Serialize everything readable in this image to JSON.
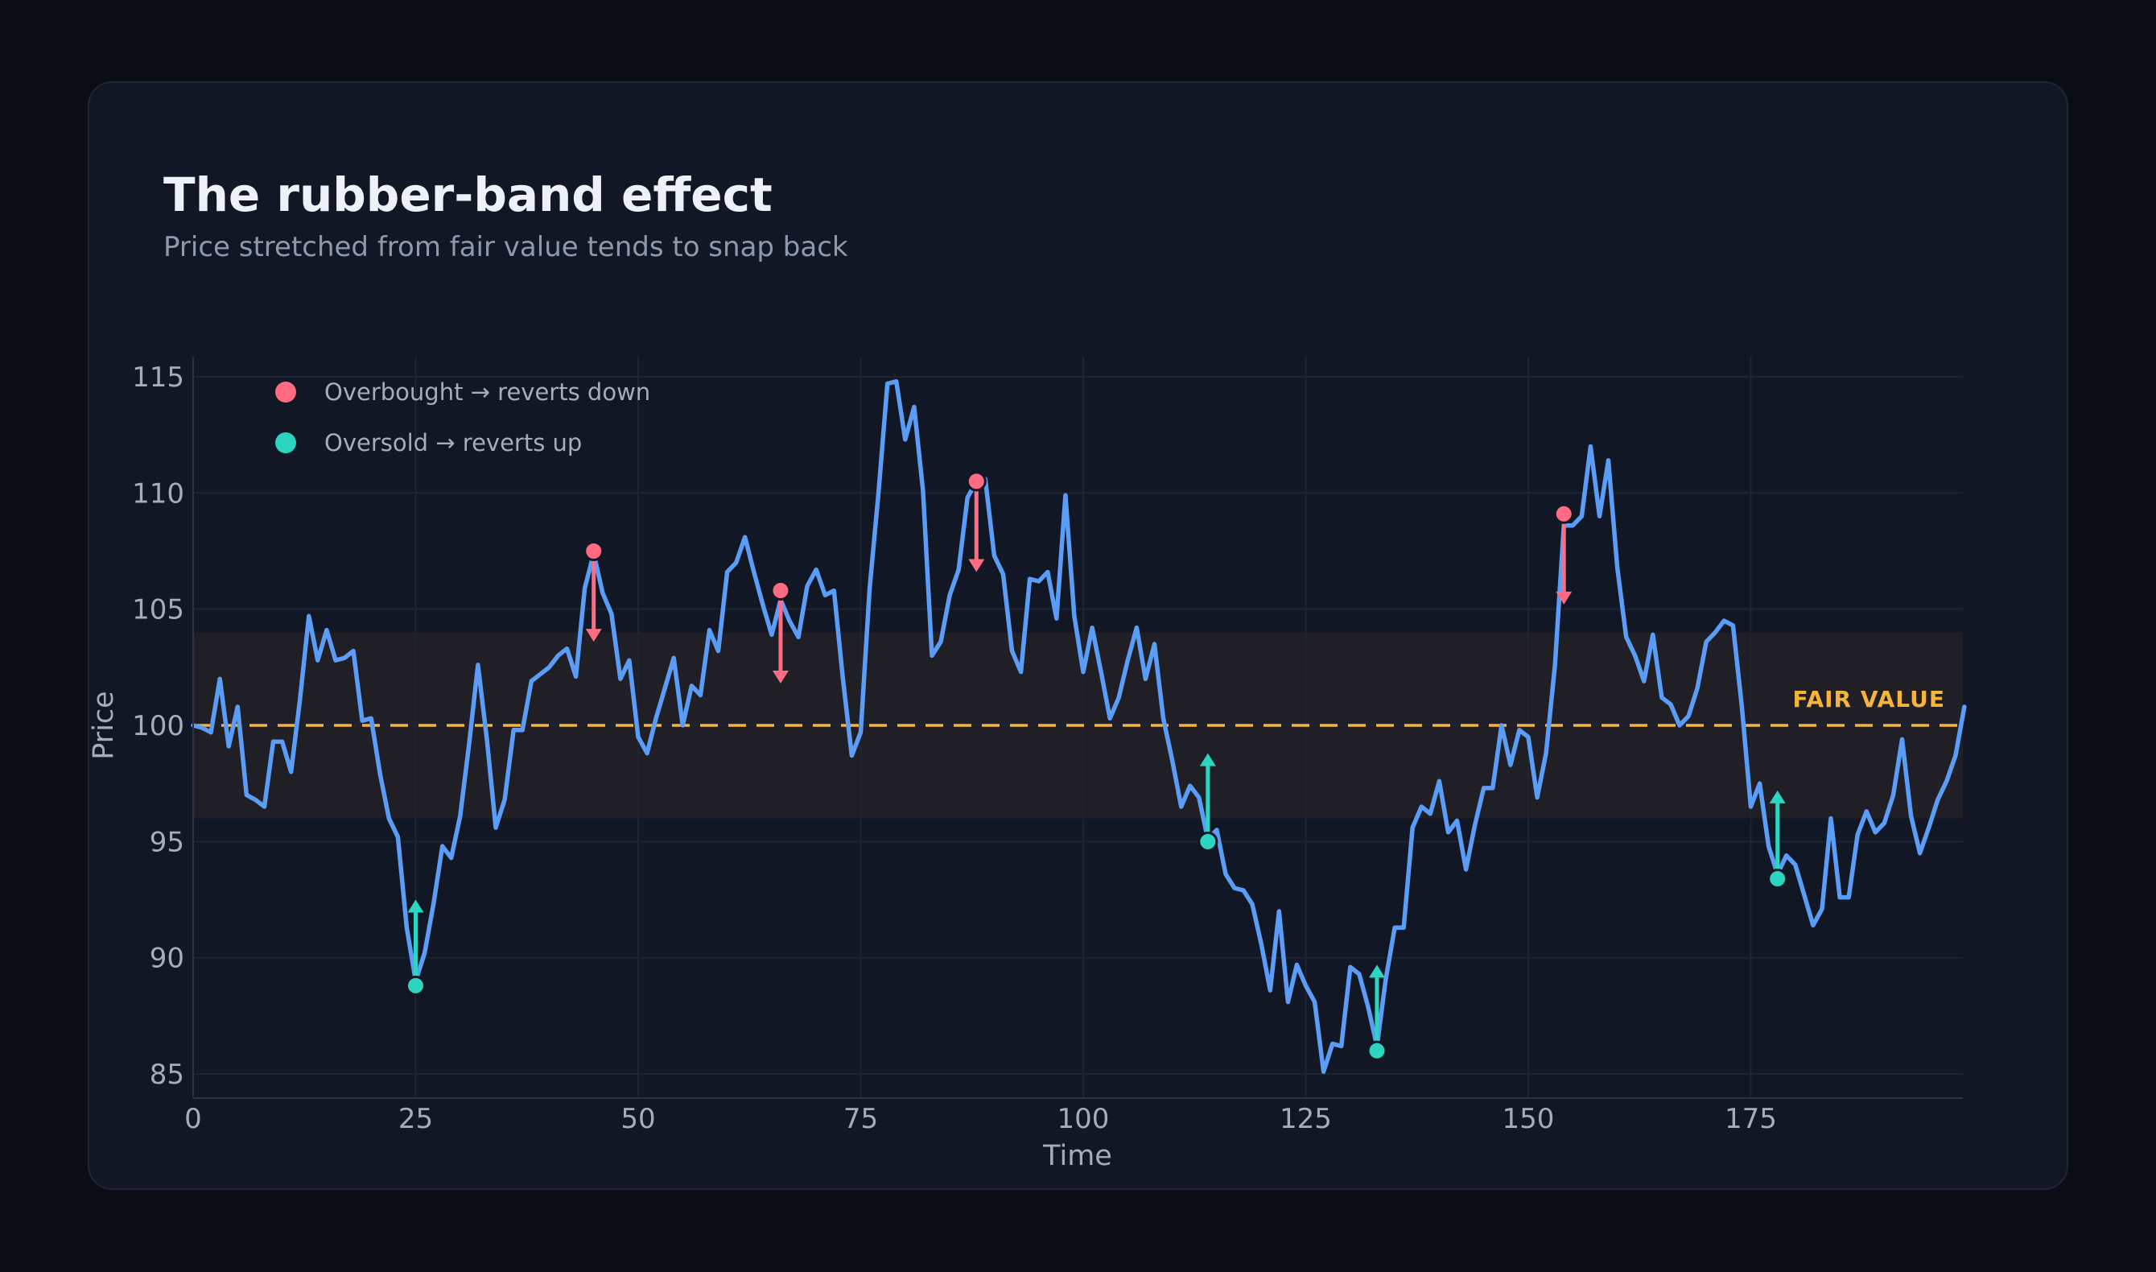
{
  "header": {
    "title": "The rubber-band effect",
    "subtitle": "Price stretched from fair value tends to snap back"
  },
  "colors": {
    "background": "#0a0d14",
    "card": "#111725",
    "price_line": "#5b9cf6",
    "fair_value": "#f5b43c",
    "overbought": "#ff6b81",
    "oversold": "#2dd4bf",
    "band": "#201f25"
  },
  "chart_data": {
    "type": "line",
    "title": "The rubber-band effect",
    "subtitle": "Price stretched from fair value tends to snap back",
    "xlabel": "Time",
    "ylabel": "Price",
    "xlim": [
      0,
      199
    ],
    "ylim": [
      84,
      116
    ],
    "x_ticks": [
      0,
      25,
      50,
      75,
      100,
      125,
      150,
      175
    ],
    "y_ticks": [
      85,
      90,
      95,
      100,
      105,
      110,
      115
    ],
    "grid": true,
    "legend_position": "top-left",
    "fair_value": 100,
    "fair_value_label": "FAIR VALUE",
    "band": [
      96,
      104
    ],
    "series": [
      {
        "values": [
          100.0,
          99.9,
          99.7,
          102.0,
          99.1,
          100.8,
          97.0,
          96.8,
          96.5,
          99.3,
          99.3,
          98.0,
          101.1,
          104.7,
          102.8,
          104.1,
          102.8,
          102.9,
          103.2,
          100.2,
          100.3,
          97.9,
          96.0,
          95.2,
          91.3,
          89.0,
          90.2,
          92.3,
          94.8,
          94.3,
          96.1,
          99.2,
          102.6,
          99.4,
          95.6,
          96.8,
          99.8,
          99.8,
          101.9,
          102.2,
          102.5,
          103.0,
          103.3,
          102.1,
          105.9,
          107.4,
          105.7,
          104.8,
          102.0,
          102.8,
          99.5,
          98.8,
          100.3,
          101.6,
          102.9,
          100.0,
          101.7,
          101.3,
          104.1,
          103.2,
          106.6,
          107.0,
          108.1,
          106.6,
          105.2,
          103.9,
          105.4,
          104.5,
          103.8,
          106.0,
          106.7,
          105.6,
          105.8,
          102.0,
          98.7,
          99.7,
          105.9,
          110.0,
          114.7,
          114.8,
          112.3,
          113.7,
          110.1,
          103.0,
          103.6,
          105.6,
          106.7,
          109.8,
          110.5,
          110.6,
          107.3,
          106.5,
          103.2,
          102.3,
          106.3,
          106.2,
          106.6,
          104.6,
          109.9,
          104.7,
          102.3,
          104.2,
          102.3,
          100.3,
          101.2,
          102.8,
          104.2,
          102.0,
          103.5,
          100.3,
          98.5,
          96.5,
          97.4,
          96.9,
          95.1,
          95.5,
          93.6,
          93.0,
          92.9,
          92.3,
          90.6,
          88.6,
          92.0,
          88.1,
          89.7,
          88.8,
          88.1,
          85.1,
          86.3,
          86.2,
          89.6,
          89.3,
          87.9,
          86.2,
          89.1,
          91.3,
          91.3,
          95.6,
          96.5,
          96.2,
          97.6,
          95.4,
          95.9,
          93.8,
          95.7,
          97.3,
          97.3,
          100.0,
          98.3,
          99.8,
          99.5,
          96.9,
          98.8,
          102.6,
          108.6,
          108.6,
          109.0,
          112.0,
          109.0,
          111.4,
          106.8,
          103.8,
          103.0,
          101.9,
          103.9,
          101.2,
          100.9,
          100.0,
          100.4,
          101.6,
          103.6,
          104.0,
          104.5,
          104.3,
          100.8,
          96.5,
          97.5,
          94.8,
          93.6,
          94.4,
          94.0,
          92.7,
          91.4,
          92.1,
          96.0,
          92.6,
          92.6,
          95.3,
          96.3,
          95.4,
          95.8,
          97.0,
          99.4,
          96.1,
          94.5,
          95.6,
          96.8,
          97.6,
          98.7,
          100.8
        ]
      }
    ],
    "legend": [
      {
        "label": "Overbought → reverts down",
        "color": "#ff6b81"
      },
      {
        "label": "Oversold → reverts up",
        "color": "#2dd4bf"
      }
    ],
    "signals": [
      {
        "x": 25,
        "y": 88.8,
        "kind": "oversold",
        "arrow_to": 92.5
      },
      {
        "x": 45,
        "y": 107.5,
        "kind": "overbought",
        "arrow_to": 103.6
      },
      {
        "x": 66,
        "y": 105.8,
        "kind": "overbought",
        "arrow_to": 101.8
      },
      {
        "x": 88,
        "y": 110.5,
        "kind": "overbought",
        "arrow_to": 106.6
      },
      {
        "x": 114,
        "y": 95.0,
        "kind": "oversold",
        "arrow_to": 98.8
      },
      {
        "x": 133,
        "y": 86.0,
        "kind": "oversold",
        "arrow_to": 89.7
      },
      {
        "x": 154,
        "y": 109.1,
        "kind": "overbought",
        "arrow_to": 105.2
      },
      {
        "x": 178,
        "y": 93.4,
        "kind": "oversold",
        "arrow_to": 97.2
      }
    ]
  }
}
